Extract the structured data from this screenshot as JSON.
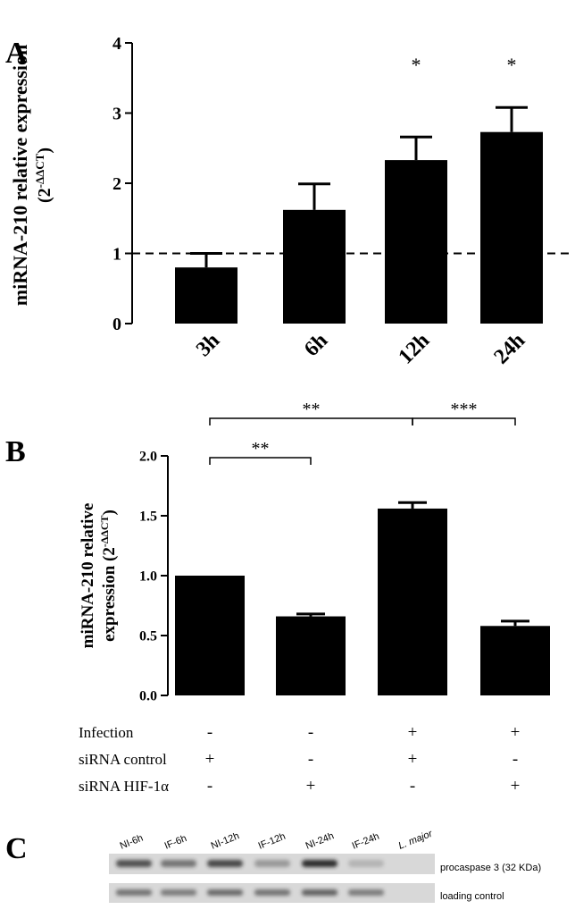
{
  "chart_data": [
    {
      "type": "bar",
      "panel": "A",
      "ylabel": "miRNA-210 relative expression",
      "ylabel_unit": [
        "(2",
        "-ΔΔCT",
        ")"
      ],
      "categories": [
        "3h",
        "6h",
        "12h",
        "24h"
      ],
      "values": [
        0.8,
        1.62,
        2.33,
        2.73
      ],
      "errors": [
        0.2,
        0.37,
        0.33,
        0.35
      ],
      "annotations": [
        null,
        null,
        "*",
        "*"
      ],
      "reference_line": 1,
      "color": "#000000",
      "ylim": [
        0,
        4
      ],
      "yticks": [
        0,
        1,
        2,
        3,
        4
      ]
    },
    {
      "type": "bar",
      "panel": "B",
      "ylabel": [
        "miRNA-210 relative",
        "expression (2",
        "-ΔΔCT",
        ")"
      ],
      "categories": [
        null,
        null,
        null,
        null
      ],
      "values": [
        1.0,
        0.66,
        1.56,
        0.58
      ],
      "errors": [
        0,
        0.02,
        0.05,
        0.04
      ],
      "significance": [
        "**",
        "**",
        "***"
      ],
      "conditions": [
        {
          "name": "Infection",
          "values": [
            "-",
            "-",
            "+",
            "+"
          ]
        },
        {
          "name": "siRNA control",
          "values": [
            "+",
            "-",
            "+",
            "-"
          ]
        },
        {
          "name": "siRNA HIF-1α",
          "values": [
            "-",
            "+",
            "-",
            "+"
          ]
        }
      ],
      "color": "#000000",
      "ylim": [
        0,
        2.0
      ],
      "yticks": [
        {
          "value": 0,
          "label": "0.0"
        },
        {
          "value": 0.5,
          "label": "0.5"
        },
        {
          "value": 1.0,
          "label": "1.0"
        },
        {
          "value": 1.5,
          "label": "1.5"
        },
        {
          "value": 2.0,
          "label": "2.0"
        }
      ]
    }
  ],
  "blot": {
    "panel": "C",
    "lanes": [
      "NI-6h",
      "IF-6h",
      "NI-12h",
      "IF-12h",
      "NI-24h",
      "IF-24h",
      "L. major"
    ],
    "rows": [
      "procaspase 3 (32 KDa)",
      "loading control"
    ]
  }
}
